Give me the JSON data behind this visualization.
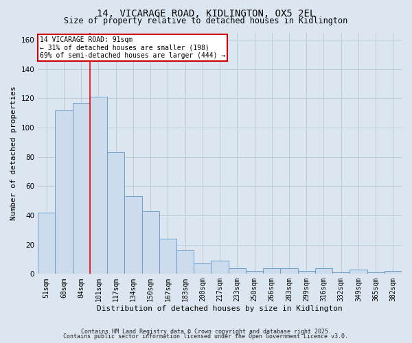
{
  "title_line1": "14, VICARAGE ROAD, KIDLINGTON, OX5 2EL",
  "title_line2": "Size of property relative to detached houses in Kidlington",
  "xlabel": "Distribution of detached houses by size in Kidlington",
  "ylabel": "Number of detached properties",
  "categories": [
    "51sqm",
    "68sqm",
    "84sqm",
    "101sqm",
    "117sqm",
    "134sqm",
    "150sqm",
    "167sqm",
    "183sqm",
    "200sqm",
    "217sqm",
    "233sqm",
    "250sqm",
    "266sqm",
    "283sqm",
    "299sqm",
    "316sqm",
    "332sqm",
    "349sqm",
    "365sqm",
    "382sqm"
  ],
  "values": [
    42,
    112,
    117,
    121,
    83,
    53,
    43,
    24,
    16,
    7,
    9,
    4,
    2,
    4,
    4,
    2,
    4,
    1,
    3,
    1,
    2
  ],
  "bar_color": "#cddcec",
  "bar_edge_color": "#6b9fc8",
  "grid_color": "#b8c8d8",
  "background_color": "#dce6f0",
  "red_line_x": 2.5,
  "annotation_text": "14 VICARAGE ROAD: 91sqm\n← 31% of detached houses are smaller (198)\n69% of semi-detached houses are larger (444) →",
  "annotation_box_facecolor": "#ffffff",
  "annotation_border_color": "#cc0000",
  "footer_line1": "Contains HM Land Registry data © Crown copyright and database right 2025.",
  "footer_line2": "Contains public sector information licensed under the Open Government Licence v3.0.",
  "ylim": [
    0,
    165
  ],
  "yticks": [
    0,
    20,
    40,
    60,
    80,
    100,
    120,
    140,
    160
  ],
  "title1_fontsize": 10,
  "title2_fontsize": 8.5,
  "xlabel_fontsize": 8,
  "ylabel_fontsize": 8,
  "tick_fontsize": 7,
  "annotation_fontsize": 7,
  "footer_fontsize": 6
}
